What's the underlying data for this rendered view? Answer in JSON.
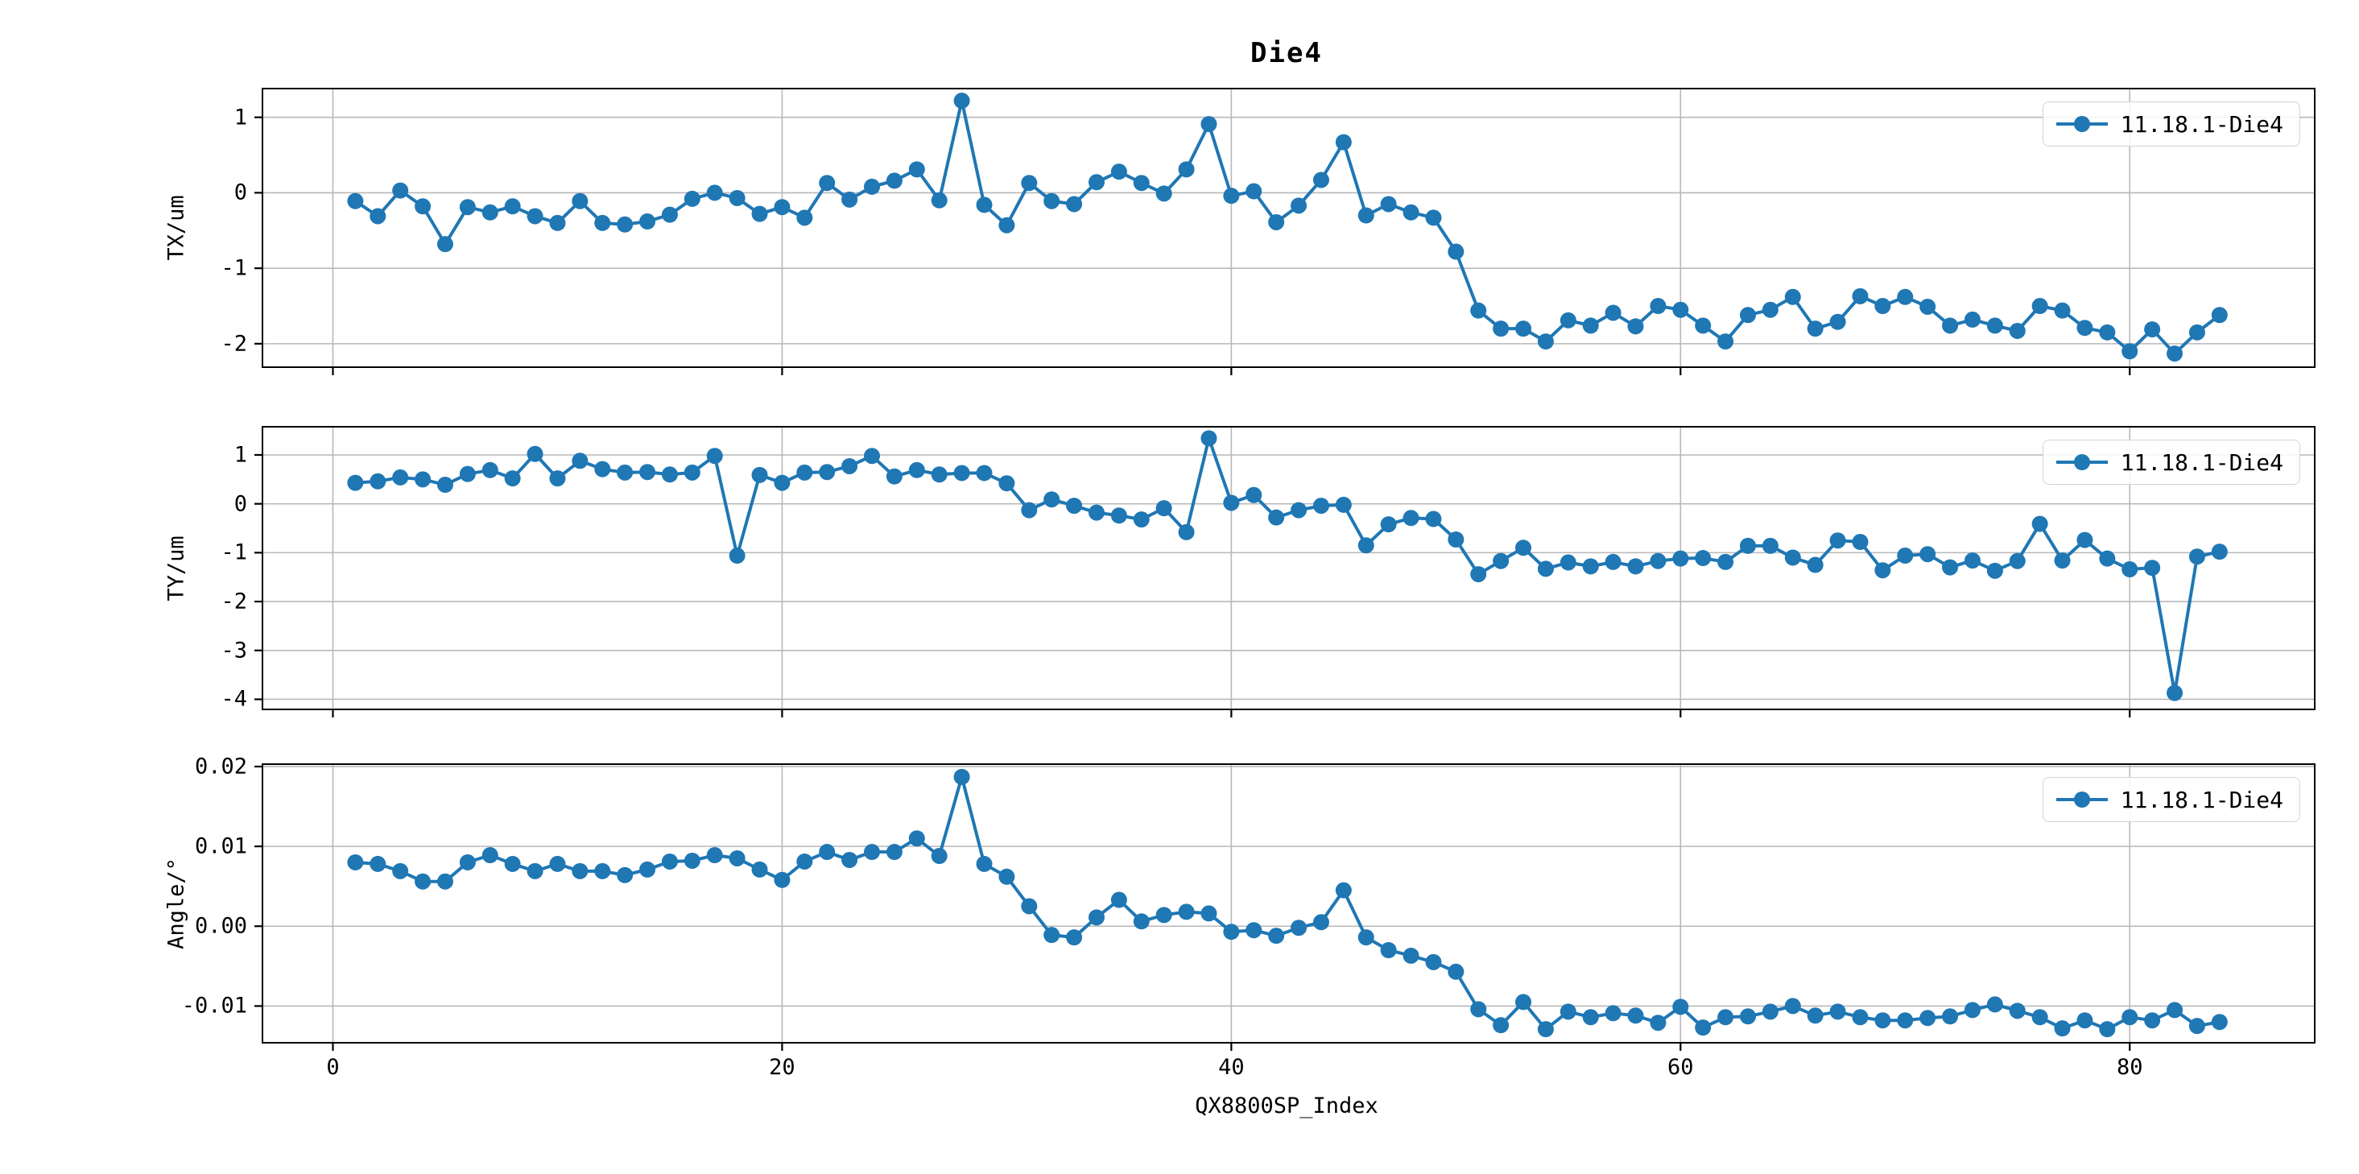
{
  "chart_data": {
    "type": "line",
    "title": "Die4",
    "x_label": "QX8800SP_Index",
    "x_lim": [
      -3.1,
      88.2
    ],
    "x_ticks": [
      0,
      20,
      40,
      60,
      80
    ],
    "x_tick_labels": [
      "0",
      "20",
      "40",
      "60",
      "80"
    ],
    "x_description": "point index 1..84, step 1",
    "grid": true,
    "legend_position": "upper right",
    "series_color": "#1f77b4",
    "marker": "circle",
    "subplots": [
      {
        "ylabel": "TX/um",
        "legend_label": "11.18.1-Die4",
        "ylim": [
          -2.3,
          1.37
        ],
        "yticks": [
          {
            "value": 1,
            "label": "1"
          },
          {
            "value": 0,
            "label": "0"
          },
          {
            "value": -1,
            "label": "-1"
          },
          {
            "value": -2,
            "label": "-2"
          }
        ],
        "values": [
          -0.11,
          -0.31,
          0.03,
          -0.18,
          -0.68,
          -0.19,
          -0.26,
          -0.18,
          -0.31,
          -0.4,
          -0.11,
          -0.4,
          -0.42,
          -0.38,
          -0.29,
          -0.08,
          0.0,
          -0.07,
          -0.28,
          -0.19,
          -0.33,
          0.13,
          -0.09,
          0.08,
          0.16,
          0.31,
          -0.1,
          1.22,
          -0.16,
          -0.43,
          0.13,
          -0.11,
          -0.15,
          0.14,
          0.28,
          0.13,
          -0.01,
          0.31,
          0.91,
          -0.04,
          0.02,
          -0.39,
          -0.17,
          0.17,
          0.67,
          -0.3,
          -0.15,
          -0.26,
          -0.33,
          -0.78,
          -1.56,
          -1.8,
          -1.8,
          -1.97,
          -1.69,
          -1.76,
          -1.59,
          -1.77,
          -1.5,
          -1.55,
          -1.76,
          -1.97,
          -1.62,
          -1.55,
          -1.38,
          -1.8,
          -1.71,
          -1.37,
          -1.5,
          -1.38,
          -1.51,
          -1.76,
          -1.68,
          -1.76,
          -1.83,
          -1.5,
          -1.56,
          -1.79,
          -1.85,
          -2.1,
          -1.81,
          -2.13,
          -1.85,
          -1.62
        ]
      },
      {
        "ylabel": "TY/um",
        "legend_label": "11.18.1-Die4",
        "ylim": [
          -4.19,
          1.56
        ],
        "yticks": [
          {
            "value": 1,
            "label": "1"
          },
          {
            "value": 0,
            "label": "0"
          },
          {
            "value": -1,
            "label": "-1"
          },
          {
            "value": -2,
            "label": "-2"
          },
          {
            "value": -3,
            "label": "-3"
          },
          {
            "value": -4,
            "label": "-4"
          }
        ],
        "values": [
          0.43,
          0.46,
          0.54,
          0.5,
          0.39,
          0.61,
          0.69,
          0.52,
          1.02,
          0.52,
          0.88,
          0.71,
          0.64,
          0.65,
          0.6,
          0.64,
          0.98,
          -1.06,
          0.59,
          0.43,
          0.64,
          0.65,
          0.77,
          0.98,
          0.56,
          0.69,
          0.6,
          0.63,
          0.63,
          0.42,
          -0.13,
          0.09,
          -0.04,
          -0.18,
          -0.24,
          -0.32,
          -0.09,
          -0.58,
          1.34,
          0.02,
          0.18,
          -0.28,
          -0.13,
          -0.04,
          -0.02,
          -0.85,
          -0.42,
          -0.29,
          -0.31,
          -0.73,
          -1.44,
          -1.17,
          -0.9,
          -1.33,
          -1.2,
          -1.28,
          -1.19,
          -1.28,
          -1.17,
          -1.12,
          -1.11,
          -1.19,
          -0.86,
          -0.86,
          -1.1,
          -1.25,
          -0.75,
          -0.78,
          -1.36,
          -1.06,
          -1.03,
          -1.3,
          -1.16,
          -1.37,
          -1.17,
          -0.41,
          -1.16,
          -0.74,
          -1.12,
          -1.34,
          -1.31,
          -3.87,
          -1.08,
          -0.98
        ]
      },
      {
        "ylabel": "Angle/°",
        "legend_label": "11.18.1-Die4",
        "ylim": [
          -0.0145,
          0.0202
        ],
        "yticks": [
          {
            "value": 0.02,
            "label": "0.02"
          },
          {
            "value": 0.01,
            "label": "0.01"
          },
          {
            "value": 0.0,
            "label": "0.00"
          },
          {
            "value": -0.01,
            "label": "-0.01"
          }
        ],
        "values": [
          0.008,
          0.0078,
          0.0069,
          0.0056,
          0.0056,
          0.008,
          0.0089,
          0.0078,
          0.0069,
          0.0078,
          0.0069,
          0.0069,
          0.0064,
          0.0071,
          0.0081,
          0.0082,
          0.0089,
          0.0085,
          0.0071,
          0.0058,
          0.0081,
          0.0093,
          0.0083,
          0.0093,
          0.0093,
          0.011,
          0.0088,
          0.0187,
          0.0078,
          0.0062,
          0.0025,
          -0.0011,
          -0.0014,
          0.0011,
          0.0033,
          0.0006,
          0.0014,
          0.0018,
          0.0016,
          -0.0007,
          -0.0005,
          -0.0012,
          -0.0002,
          0.0005,
          0.0045,
          -0.0014,
          -0.003,
          -0.0037,
          -0.0045,
          -0.0057,
          -0.0104,
          -0.0124,
          -0.0095,
          -0.0129,
          -0.0107,
          -0.0114,
          -0.0109,
          -0.0112,
          -0.0121,
          -0.0101,
          -0.0127,
          -0.0114,
          -0.0113,
          -0.0107,
          -0.01,
          -0.0112,
          -0.0107,
          -0.0114,
          -0.0118,
          -0.0118,
          -0.0115,
          -0.0113,
          -0.0105,
          -0.0098,
          -0.0106,
          -0.0114,
          -0.0128,
          -0.0118,
          -0.0129,
          -0.0114,
          -0.0118,
          -0.0105,
          -0.0125,
          -0.012
        ]
      }
    ],
    "colors": {
      "line": "#1f77b4",
      "grid": "#b8b8b8",
      "spine": "#000000",
      "legend_border": "#d4d4d4"
    }
  }
}
